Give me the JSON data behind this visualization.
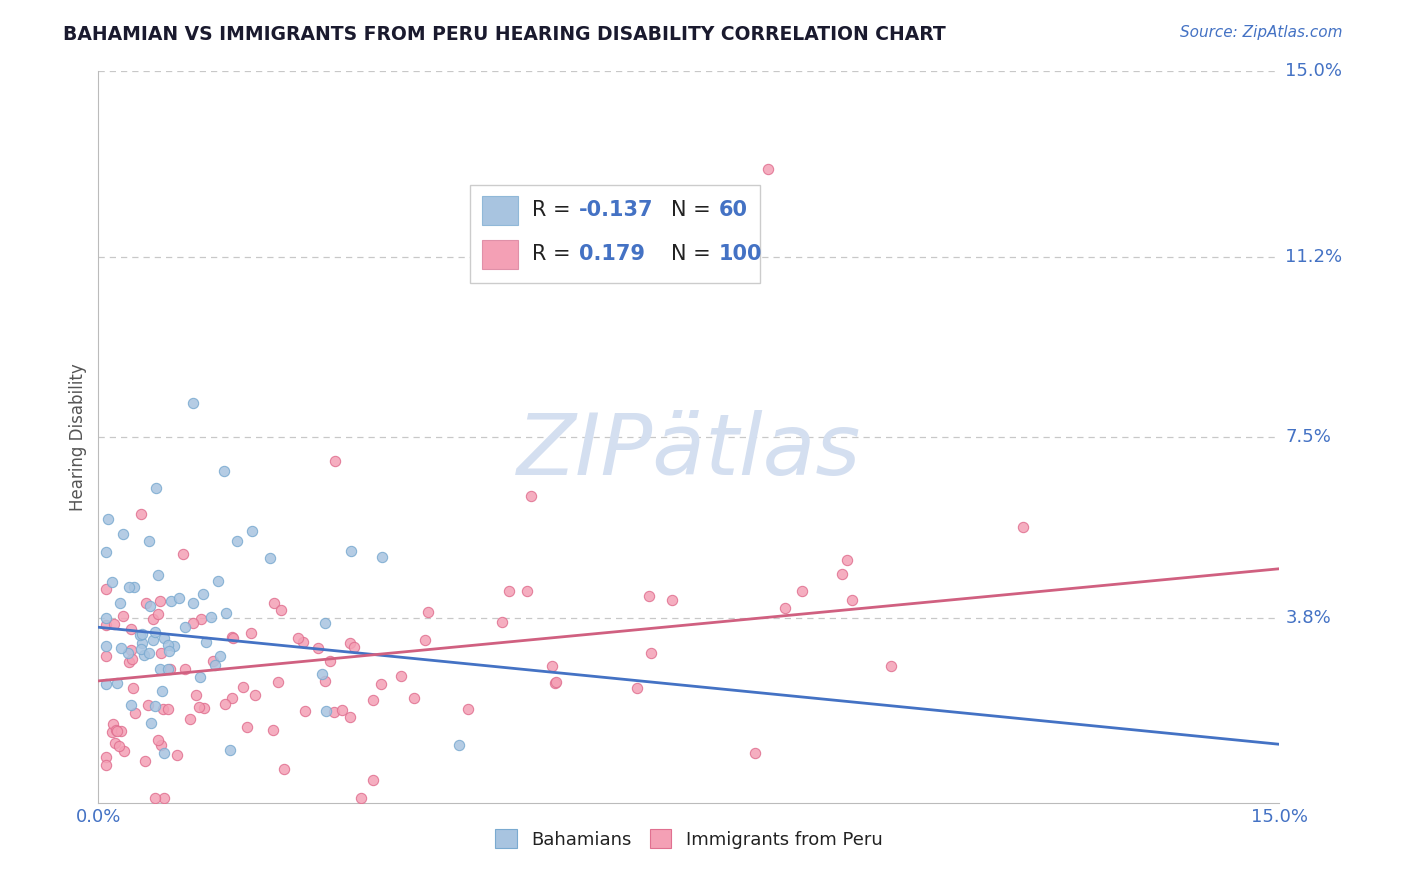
{
  "title": "BAHAMIAN VS IMMIGRANTS FROM PERU HEARING DISABILITY CORRELATION CHART",
  "source": "Source: ZipAtlas.com",
  "ylabel": "Hearing Disability",
  "x_min": 0.0,
  "x_max": 0.15,
  "y_min": 0.0,
  "y_max": 0.15,
  "y_tick_labels": [
    "15.0%",
    "11.2%",
    "7.5%",
    "3.8%"
  ],
  "y_tick_positions": [
    0.15,
    0.112,
    0.075,
    0.038
  ],
  "grid_color": "#c8c8c8",
  "background_color": "#ffffff",
  "series1_label": "Bahamians",
  "series1_color": "#a8c4e0",
  "series1_edge": "#7aaad0",
  "series1_N": 60,
  "series2_label": "Immigrants from Peru",
  "series2_color": "#f4a0b5",
  "series2_edge": "#e07090",
  "series2_N": 100,
  "title_color": "#1a1a2e",
  "tick_label_color": "#4472c4",
  "line1_color": "#4472c4",
  "line2_color": "#d06080",
  "watermark_color": "#d4dff0",
  "legend_R1": "-0.137",
  "legend_N1": "60",
  "legend_R2": "0.179",
  "legend_N2": "100",
  "line1_y0": 0.036,
  "line1_y1": 0.012,
  "line2_y0": 0.025,
  "line2_y1": 0.048
}
